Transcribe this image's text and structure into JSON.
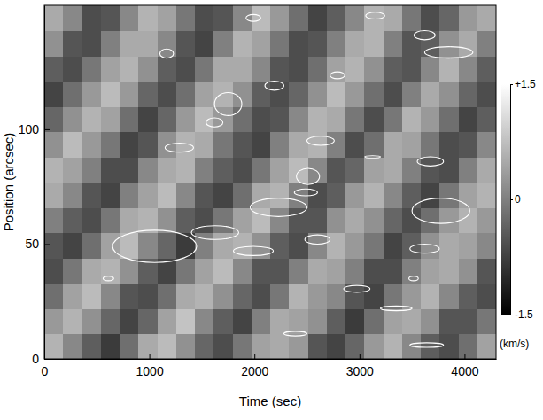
{
  "chart_data": {
    "type": "heatmap",
    "xlabel": "Time (sec)",
    "ylabel": "Position (arcsec)",
    "xlim": [
      0,
      4300
    ],
    "ylim": [
      0,
      154
    ],
    "xticks": [
      0,
      1000,
      2000,
      3000,
      4000
    ],
    "yticks": [
      0,
      50,
      100
    ],
    "cells": [
      [
        0.6,
        0.1,
        -0.4,
        -0.8,
        -0.2,
        0.5,
        0.7,
        0.2,
        -0.3,
        -0.6,
        -0.1,
        0.4,
        0.5,
        0.3,
        -0.5,
        -0.7,
        -0.3,
        0.3,
        0.6,
        0.1,
        -0.4,
        -0.6,
        -0.2,
        0.4
      ],
      [
        0.3,
        0.6,
        0.2,
        -0.3,
        -0.7,
        -0.3,
        0.4,
        0.8,
        0.1,
        -0.4,
        -0.7,
        0.0,
        0.5,
        0.4,
        0.2,
        -0.4,
        -0.8,
        -0.2,
        0.4,
        0.5,
        0.2,
        -0.5,
        -0.5,
        -0.1
      ],
      [
        -0.2,
        0.4,
        0.7,
        0.1,
        -0.5,
        -0.6,
        -0.2,
        0.5,
        0.6,
        0.2,
        -0.3,
        -0.6,
        -0.1,
        0.6,
        0.3,
        0.1,
        -0.5,
        -0.7,
        -0.1,
        0.3,
        0.6,
        0.1,
        -0.4,
        -0.6
      ],
      [
        -0.6,
        -0.1,
        0.5,
        0.6,
        0.2,
        -0.4,
        -0.7,
        -0.1,
        0.4,
        0.7,
        0.1,
        -0.5,
        -0.5,
        0.0,
        0.5,
        0.4,
        0.0,
        -0.6,
        -0.6,
        0.0,
        0.4,
        0.5,
        0.2,
        -0.5
      ],
      [
        -0.5,
        -0.7,
        -0.2,
        0.4,
        0.7,
        0.1,
        -0.3,
        -0.8,
        0.0,
        0.5,
        0.6,
        0.2,
        -0.4,
        -0.6,
        0.1,
        0.6,
        0.3,
        -0.1,
        -0.7,
        -0.4,
        0.2,
        0.5,
        0.4,
        0.1
      ],
      [
        0.0,
        -0.4,
        -0.6,
        -0.1,
        0.5,
        0.6,
        0.2,
        -0.4,
        -0.6,
        -0.1,
        0.4,
        0.7,
        0.1,
        -0.5,
        -0.5,
        0.2,
        0.5,
        0.2,
        -0.3,
        -0.6,
        -0.2,
        0.3,
        0.6,
        0.3
      ],
      [
        0.5,
        0.1,
        -0.5,
        -0.7,
        0.0,
        0.4,
        0.7,
        0.1,
        -0.5,
        -0.7,
        -0.2,
        0.5,
        0.6,
        0.0,
        -0.6,
        -0.4,
        0.3,
        0.6,
        0.1,
        -0.4,
        -0.7,
        -0.1,
        0.4,
        0.6
      ],
      [
        0.6,
        0.4,
        0.0,
        -0.6,
        -0.6,
        0.1,
        0.5,
        0.6,
        0.0,
        -0.4,
        -0.6,
        -0.1,
        0.4,
        0.7,
        0.1,
        -0.5,
        -0.3,
        0.4,
        0.5,
        0.0,
        -0.5,
        -0.6,
        0.0,
        0.5
      ],
      [
        0.2,
        0.7,
        0.3,
        -0.1,
        -0.7,
        -0.5,
        0.2,
        0.6,
        0.5,
        -0.1,
        -0.5,
        -0.7,
        0.0,
        0.5,
        0.6,
        0.0,
        -0.6,
        -0.2,
        0.5,
        0.4,
        -0.1,
        -0.6,
        -0.5,
        0.1
      ],
      [
        -0.3,
        0.2,
        0.6,
        0.4,
        -0.2,
        -0.7,
        -0.3,
        0.3,
        0.7,
        0.3,
        -0.2,
        -0.6,
        -0.5,
        0.1,
        0.6,
        0.5,
        -0.1,
        -0.6,
        -0.1,
        0.6,
        0.3,
        -0.2,
        -0.7,
        -0.4
      ],
      [
        -0.7,
        -0.2,
        0.3,
        0.7,
        0.3,
        -0.3,
        -0.6,
        -0.2,
        0.4,
        0.6,
        0.2,
        -0.4,
        -0.6,
        -0.3,
        0.2,
        0.7,
        0.3,
        -0.2,
        -0.6,
        0.0,
        0.5,
        0.2,
        -0.3,
        -0.6
      ],
      [
        -0.4,
        -0.6,
        -0.1,
        0.4,
        0.6,
        0.2,
        -0.4,
        -0.6,
        -0.1,
        0.5,
        0.5,
        0.1,
        -0.5,
        -0.6,
        -0.2,
        0.4,
        0.6,
        0.2,
        -0.4,
        -0.5,
        0.1,
        0.6,
        0.1,
        -0.4
      ],
      [
        0.2,
        -0.5,
        -0.6,
        0.0,
        0.5,
        0.5,
        0.1,
        -0.5,
        -0.7,
        0.0,
        0.6,
        0.4,
        -0.1,
        -0.6,
        -0.5,
        0.0,
        0.5,
        0.6,
        0.0,
        -0.5,
        -0.4,
        0.2,
        0.5,
        0.0
      ],
      [
        0.5,
        0.1,
        -0.6,
        -0.5,
        0.1,
        0.6,
        0.4,
        -0.1,
        -0.6,
        -0.5,
        0.1,
        0.7,
        0.3,
        -0.2,
        -0.7,
        -0.4,
        0.1,
        0.6,
        0.5,
        -0.1,
        -0.6,
        -0.3,
        0.3,
        0.5
      ]
    ],
    "clim": [
      -1.5,
      1.5
    ],
    "cticks": [
      {
        "value": 1.5,
        "label": "+1.5"
      },
      0,
      -1.5
    ],
    "colorbar_label": "(km/s)",
    "contours": [
      {
        "x": [
          1100,
          1230
        ],
        "y": [
          131,
          135
        ]
      },
      {
        "x": [
          1920,
          2060
        ],
        "y": [
          147,
          150
        ]
      },
      {
        "x": [
          3060,
          3240
        ],
        "y": [
          148,
          151
        ]
      },
      {
        "x": [
          3520,
          3720
        ],
        "y": [
          139,
          143
        ]
      },
      {
        "x": [
          3620,
          4080
        ],
        "y": [
          131,
          136
        ]
      },
      {
        "x": [
          2100,
          2280
        ],
        "y": [
          117,
          121
        ]
      },
      {
        "x": [
          1620,
          1880
        ],
        "y": [
          106,
          116
        ]
      },
      {
        "x": [
          1540,
          1700
        ],
        "y": [
          101,
          105
        ]
      },
      {
        "x": [
          2720,
          2860
        ],
        "y": [
          122,
          125
        ]
      },
      {
        "x": [
          1150,
          1420
        ],
        "y": [
          90,
          94
        ]
      },
      {
        "x": [
          2500,
          2760
        ],
        "y": [
          93,
          97
        ]
      },
      {
        "x": [
          3050,
          3200
        ],
        "y": [
          87.5,
          88.5
        ]
      },
      {
        "x": [
          3550,
          3800
        ],
        "y": [
          84,
          88
        ]
      },
      {
        "x": [
          2400,
          2620
        ],
        "y": [
          76,
          83
        ]
      },
      {
        "x": [
          2380,
          2600
        ],
        "y": [
          71,
          74
        ]
      },
      {
        "x": [
          1960,
          2500
        ],
        "y": [
          62,
          70
        ]
      },
      {
        "x": [
          3500,
          4050
        ],
        "y": [
          59,
          70
        ]
      },
      {
        "x": [
          650,
          1450
        ],
        "y": [
          42,
          56
        ]
      },
      {
        "x": [
          1400,
          1850
        ],
        "y": [
          52,
          58
        ]
      },
      {
        "x": [
          1800,
          2180
        ],
        "y": [
          45,
          49
        ]
      },
      {
        "x": [
          2480,
          2720
        ],
        "y": [
          50,
          54
        ]
      },
      {
        "x": [
          3480,
          3760
        ],
        "y": [
          46,
          50
        ]
      },
      {
        "x": [
          560,
          660
        ],
        "y": [
          34,
          36
        ]
      },
      {
        "x": [
          2850,
          3100
        ],
        "y": [
          29,
          32
        ]
      },
      {
        "x": [
          3470,
          3560
        ],
        "y": [
          34,
          36
        ]
      },
      {
        "x": [
          3200,
          3500
        ],
        "y": [
          21,
          23
        ]
      },
      {
        "x": [
          2280,
          2500
        ],
        "y": [
          10,
          12
        ]
      },
      {
        "x": [
          3480,
          3800
        ],
        "y": [
          5,
          7
        ]
      }
    ]
  }
}
